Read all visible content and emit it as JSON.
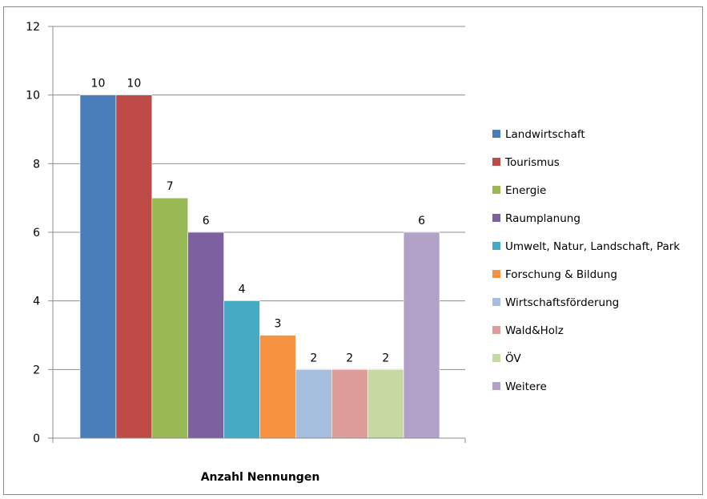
{
  "chart_data": {
    "type": "bar",
    "xlabel": "Anzahl Nennungen",
    "ylim": [
      0,
      12
    ],
    "yticks": [
      0,
      2,
      4,
      6,
      8,
      10,
      12
    ],
    "grid": true,
    "legend_position": "right",
    "series": [
      {
        "name": "Landwirtschaft",
        "value": 10,
        "color": "#4a7ebb"
      },
      {
        "name": "Tourismus",
        "value": 10,
        "color": "#be4b48"
      },
      {
        "name": "Energie",
        "value": 7,
        "color": "#98b954"
      },
      {
        "name": "Raumplanung",
        "value": 6,
        "color": "#7d60a0"
      },
      {
        "name": "Umwelt, Natur, Landschaft,  Park",
        "value": 4,
        "color": "#46aac5"
      },
      {
        "name": "Forschung & Bildung",
        "value": 3,
        "color": "#f69240"
      },
      {
        "name": "Wirtschaftsförderung",
        "value": 2,
        "color": "#a7bfde"
      },
      {
        "name": "Wald&Holz",
        "value": 2,
        "color": "#dd9b99"
      },
      {
        "name": "ÖV",
        "value": 2,
        "color": "#c6d9a2"
      },
      {
        "name": "Weitere",
        "value": 6,
        "color": "#b2a2c7"
      }
    ]
  }
}
